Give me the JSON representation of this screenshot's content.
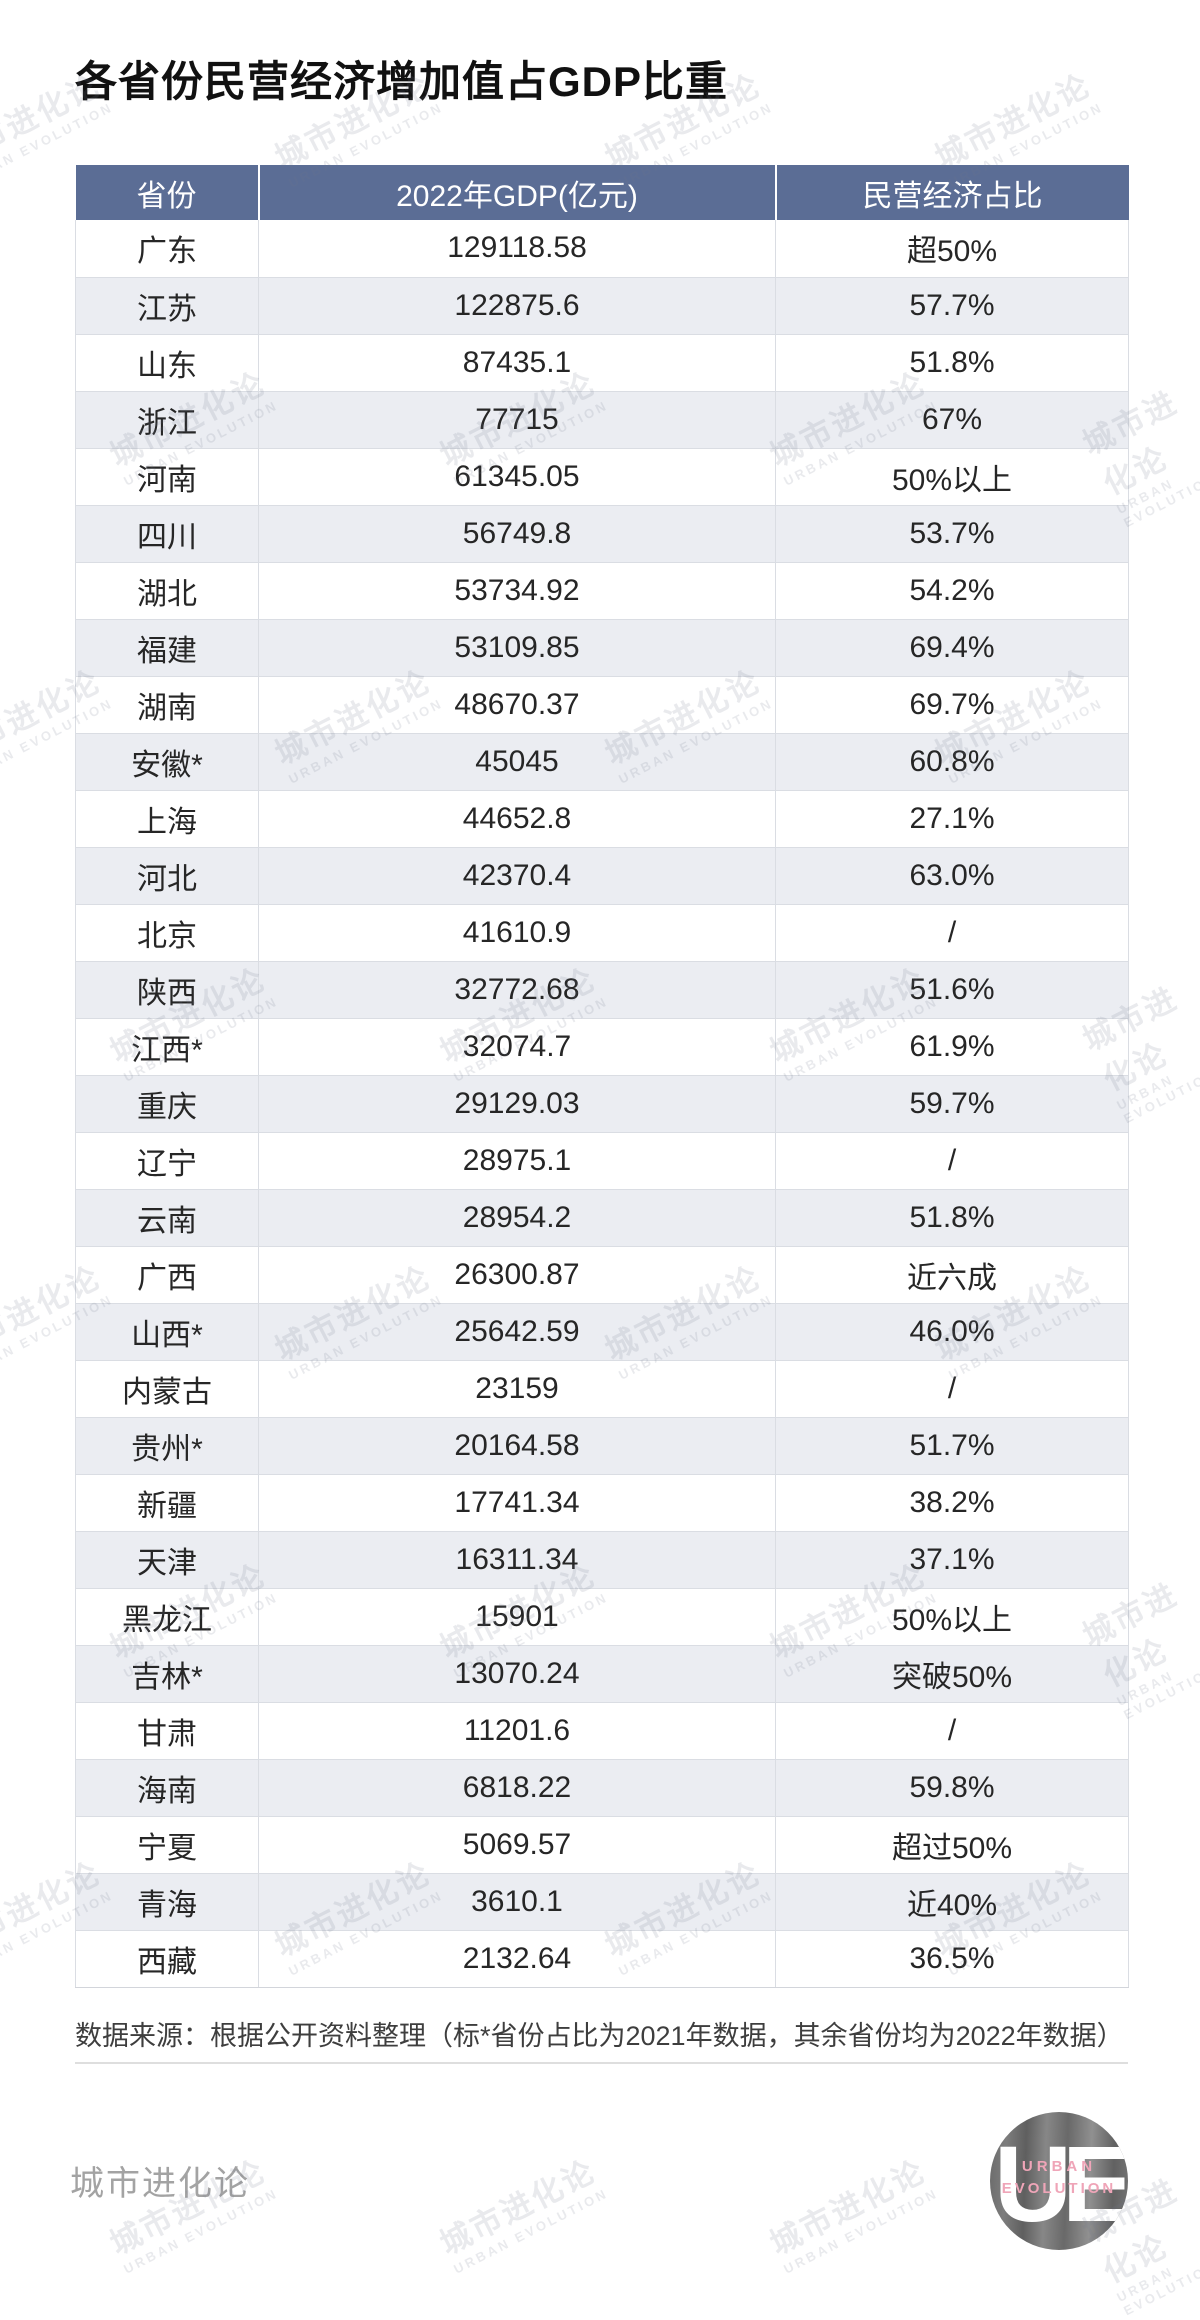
{
  "title": "各省份民营经济增加值占GDP比重",
  "watermark": {
    "line1": "城市进化论",
    "line2": "URBAN EVOLUTION"
  },
  "table": {
    "headers": [
      "省份",
      "2022年GDP(亿元)",
      "民营经济占比"
    ],
    "rows": [
      [
        "广东",
        "129118.58",
        "超50%"
      ],
      [
        "江苏",
        "122875.6",
        "57.7%"
      ],
      [
        "山东",
        "87435.1",
        "51.8%"
      ],
      [
        "浙江",
        "77715",
        "67%"
      ],
      [
        "河南",
        "61345.05",
        "50%以上"
      ],
      [
        "四川",
        "56749.8",
        "53.7%"
      ],
      [
        "湖北",
        "53734.92",
        "54.2%"
      ],
      [
        "福建",
        "53109.85",
        "69.4%"
      ],
      [
        "湖南",
        "48670.37",
        "69.7%"
      ],
      [
        "安徽*",
        "45045",
        "60.8%"
      ],
      [
        "上海",
        "44652.8",
        "27.1%"
      ],
      [
        "河北",
        "42370.4",
        "63.0%"
      ],
      [
        "北京",
        "41610.9",
        "/"
      ],
      [
        "陕西",
        "32772.68",
        "51.6%"
      ],
      [
        "江西*",
        "32074.7",
        "61.9%"
      ],
      [
        "重庆",
        "29129.03",
        "59.7%"
      ],
      [
        "辽宁",
        "28975.1",
        "/"
      ],
      [
        "云南",
        "28954.2",
        "51.8%"
      ],
      [
        "广西",
        "26300.87",
        "近六成"
      ],
      [
        "山西*",
        "25642.59",
        "46.0%"
      ],
      [
        "内蒙古",
        "23159",
        "/"
      ],
      [
        "贵州*",
        "20164.58",
        "51.7%"
      ],
      [
        "新疆",
        "17741.34",
        "38.2%"
      ],
      [
        "天津",
        "16311.34",
        "37.1%"
      ],
      [
        "黑龙江",
        "15901",
        "50%以上"
      ],
      [
        "吉林*",
        "13070.24",
        "突破50%"
      ],
      [
        "甘肃",
        "11201.6",
        "/"
      ],
      [
        "海南",
        "6818.22",
        "59.8%"
      ],
      [
        "宁夏",
        "5069.57",
        "超过50%"
      ],
      [
        "青海",
        "3610.1",
        "近40%"
      ],
      [
        "西藏",
        "2132.64",
        "36.5%"
      ]
    ]
  },
  "footnote": "数据来源：根据公开资料整理（标*省份占比为2021年数据，其余省份均为2022年数据）",
  "footer": {
    "brand": "城市进化论",
    "logo_monogram": "UE",
    "logo_line1": "URBAN",
    "logo_line2": "EVOLUTION"
  },
  "colors": {
    "header_bg": "#5b6d95",
    "row_alt_bg": "#ebedf2",
    "logo_pink": "#efa5b8",
    "brand_gray": "#a3a3a3"
  },
  "chart_data": {
    "type": "table",
    "title": "各省份民营经济增加值占GDP比重",
    "columns": [
      "省份",
      "2022年GDP(亿元)",
      "民营经济占比"
    ],
    "provinces": [
      "广东",
      "江苏",
      "山东",
      "浙江",
      "河南",
      "四川",
      "湖北",
      "福建",
      "湖南",
      "安徽*",
      "上海",
      "河北",
      "北京",
      "陕西",
      "江西*",
      "重庆",
      "辽宁",
      "云南",
      "广西",
      "山西*",
      "内蒙古",
      "贵州*",
      "新疆",
      "天津",
      "黑龙江",
      "吉林*",
      "甘肃",
      "海南",
      "宁夏",
      "青海",
      "西藏"
    ],
    "gdp_2022_yi_yuan": [
      129118.58,
      122875.6,
      87435.1,
      77715,
      61345.05,
      56749.8,
      53734.92,
      53109.85,
      48670.37,
      45045,
      44652.8,
      42370.4,
      41610.9,
      32772.68,
      32074.7,
      29129.03,
      28975.1,
      28954.2,
      26300.87,
      25642.59,
      23159,
      20164.58,
      17741.34,
      16311.34,
      15901,
      13070.24,
      11201.6,
      6818.22,
      5069.57,
      3610.1,
      2132.64
    ],
    "private_economy_share": [
      "超50%",
      "57.7%",
      "51.8%",
      "67%",
      "50%以上",
      "53.7%",
      "54.2%",
      "69.4%",
      "69.7%",
      "60.8%",
      "27.1%",
      "63.0%",
      "/",
      "51.6%",
      "61.9%",
      "59.7%",
      "/",
      "51.8%",
      "近六成",
      "46.0%",
      "/",
      "51.7%",
      "38.2%",
      "37.1%",
      "50%以上",
      "突破50%",
      "/",
      "59.8%",
      "超过50%",
      "近40%",
      "36.5%"
    ],
    "note": "数据来源：根据公开资料整理（标*省份占比为2021年数据，其余省份均为2022年数据）"
  }
}
